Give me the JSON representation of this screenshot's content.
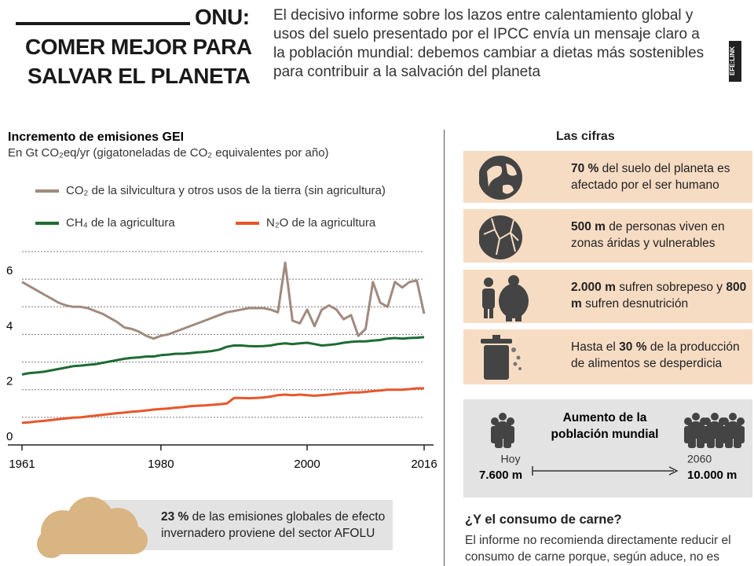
{
  "header": {
    "title_top": "ONU:",
    "title_lines": [
      "COMER MEJOR PARA",
      "SALVAR EL PLANETA"
    ],
    "intro": "El decisivo informe sobre los lazos entre calentamiento global y usos del suelo presentado por el IPCC envía un mensaje claro a la población mundial: debemos cambiar a dietas más sostenibles para contribuir a la salvación del planeta",
    "credit": "EFE:LINK"
  },
  "chart_data": {
    "type": "line",
    "title": "Incremento de emisiones GEI",
    "subtitle": "En Gt CO₂eq/yr (gigatoneladas de CO₂ equivalentes por año)",
    "x": [
      1961,
      1962,
      1963,
      1964,
      1965,
      1966,
      1967,
      1968,
      1969,
      1970,
      1971,
      1972,
      1973,
      1974,
      1975,
      1976,
      1977,
      1978,
      1979,
      1980,
      1981,
      1982,
      1983,
      1984,
      1985,
      1986,
      1987,
      1988,
      1989,
      1990,
      1991,
      1992,
      1993,
      1994,
      1995,
      1996,
      1997,
      1998,
      1999,
      2000,
      2001,
      2002,
      2003,
      2004,
      2005,
      2006,
      2007,
      2008,
      2009,
      2010,
      2011,
      2012,
      2013,
      2014,
      2015,
      2016
    ],
    "series": [
      {
        "name": "CO₂ de la silvicultura y otros usos de la tierra (sin agricultura)",
        "color": "#a08a7e",
        "values": [
          5.9,
          5.75,
          5.6,
          5.45,
          5.3,
          5.15,
          5.05,
          5.0,
          5.0,
          4.95,
          4.85,
          4.75,
          4.6,
          4.45,
          4.25,
          4.2,
          4.1,
          3.95,
          3.85,
          3.95,
          4.0,
          4.1,
          4.2,
          4.3,
          4.4,
          4.5,
          4.6,
          4.7,
          4.8,
          4.85,
          4.9,
          4.95,
          4.95,
          4.95,
          4.9,
          4.8,
          6.6,
          4.5,
          4.4,
          4.9,
          4.3,
          4.9,
          5.05,
          4.9,
          4.55,
          4.7,
          3.95,
          4.2,
          5.9,
          5.15,
          5.0,
          5.9,
          5.7,
          5.9,
          5.95,
          4.75
        ]
      },
      {
        "name": "CH₄ de la agricultura",
        "color": "#1e6b34",
        "values": [
          2.55,
          2.6,
          2.62,
          2.65,
          2.7,
          2.75,
          2.8,
          2.85,
          2.87,
          2.9,
          2.92,
          2.97,
          3.02,
          3.07,
          3.12,
          3.15,
          3.17,
          3.2,
          3.2,
          3.25,
          3.27,
          3.3,
          3.3,
          3.32,
          3.35,
          3.37,
          3.4,
          3.45,
          3.55,
          3.6,
          3.6,
          3.58,
          3.57,
          3.58,
          3.6,
          3.65,
          3.68,
          3.65,
          3.68,
          3.7,
          3.65,
          3.6,
          3.62,
          3.65,
          3.7,
          3.73,
          3.75,
          3.75,
          3.78,
          3.8,
          3.85,
          3.87,
          3.85,
          3.87,
          3.88,
          3.9
        ]
      },
      {
        "name": "N₂O de la agricultura",
        "color": "#e8562a",
        "values": [
          0.8,
          0.82,
          0.85,
          0.87,
          0.9,
          0.93,
          0.96,
          0.99,
          1.0,
          1.03,
          1.06,
          1.09,
          1.12,
          1.15,
          1.17,
          1.2,
          1.22,
          1.25,
          1.28,
          1.3,
          1.32,
          1.35,
          1.37,
          1.4,
          1.42,
          1.43,
          1.45,
          1.47,
          1.5,
          1.7,
          1.7,
          1.69,
          1.7,
          1.72,
          1.75,
          1.8,
          1.82,
          1.8,
          1.82,
          1.8,
          1.78,
          1.8,
          1.82,
          1.85,
          1.87,
          1.9,
          1.9,
          1.92,
          1.95,
          1.97,
          2.0,
          2.0,
          2.0,
          2.02,
          2.05,
          2.05
        ]
      }
    ],
    "xlim": [
      1961,
      2016
    ],
    "xticks": [
      1961,
      1980,
      2000,
      2016
    ],
    "ylim": [
      0,
      7
    ],
    "yticks": [
      0,
      2,
      4,
      6
    ],
    "ygrid": [
      1,
      2,
      3,
      4,
      5,
      6,
      7
    ],
    "grid": true
  },
  "note": [
    {
      "text": "23 %",
      "bold": true
    },
    {
      "text": " de las emisiones globales de efecto invernadero proviene del sector AFOLU",
      "bold": false
    }
  ],
  "figures": {
    "title": "Las cifras",
    "items": [
      [
        {
          "text": "70 %",
          "bold": true
        },
        {
          "text": " del suelo del planeta es afectado por el ser humano",
          "bold": false
        }
      ],
      [
        {
          "text": "500 m",
          "bold": true
        },
        {
          "text": " de personas viven en zonas áridas y vulnerables",
          "bold": false
        }
      ],
      [
        {
          "text": "2.000 m",
          "bold": true
        },
        {
          "text": " sufren sobrepeso y ",
          "bold": false
        },
        {
          "text": "800 m",
          "bold": true
        },
        {
          "text": " sufren desnutrición",
          "bold": false
        }
      ],
      [
        {
          "text": "Hasta el ",
          "bold": false
        },
        {
          "text": "30 %",
          "bold": true
        },
        {
          "text": " de la producción de alimentos se desperdicia",
          "bold": false
        }
      ]
    ]
  },
  "population": {
    "title_lines": [
      "Aumento de la",
      "población mundial"
    ],
    "from_label": "Hoy",
    "from_value": "7.600 m",
    "to_label": "2060",
    "to_value": "10.000 m"
  },
  "meat": {
    "title": "¿Y el consumo de carne?",
    "text": "El informe no recomienda directamente reducir el consumo de carne porque, según aduce, no es lo"
  }
}
